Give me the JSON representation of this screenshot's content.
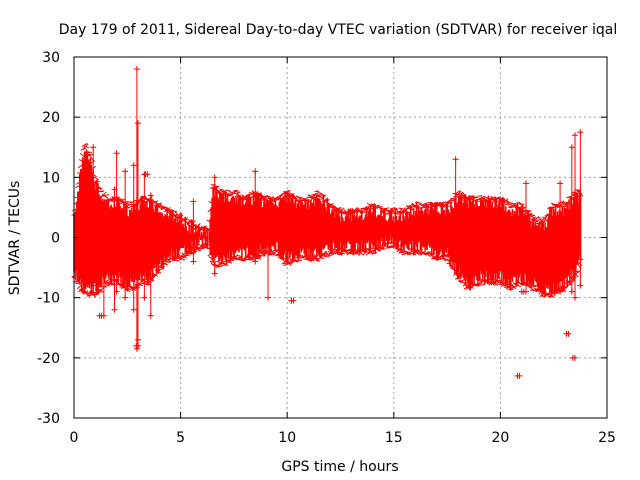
{
  "chart_data": {
    "type": "scatter",
    "title": "Day 179 of 2011, Sidereal Day-to-day VTEC variation (SDTVAR) for receiver iqal",
    "xlabel": "GPS time / hours",
    "ylabel": "SDTVAR / TECUs",
    "xlim": [
      0,
      25
    ],
    "ylim": [
      -30,
      30
    ],
    "xticks": [
      0,
      5,
      10,
      15,
      20,
      25
    ],
    "yticks": [
      -30,
      -20,
      -10,
      0,
      10,
      20,
      30
    ],
    "grid": true,
    "series": [
      {
        "name": "SDTVAR",
        "color": "#ff0000",
        "marker": "+",
        "envelope": {
          "x": [
            0.0,
            0.3,
            0.5,
            0.8,
            1.0,
            1.3,
            1.6,
            2.0,
            2.5,
            2.8,
            3.2,
            3.5,
            4.0,
            4.5,
            5.0,
            5.5,
            6.0,
            6.3,
            6.5,
            7.0,
            7.5,
            8.0,
            8.5,
            9.0,
            9.5,
            10.0,
            10.5,
            11.0,
            11.5,
            12.0,
            12.5,
            13.0,
            13.5,
            14.0,
            14.5,
            15.0,
            15.5,
            16.0,
            16.5,
            17.0,
            17.5,
            18.0,
            18.5,
            19.0,
            19.5,
            20.0,
            20.5,
            21.0,
            21.5,
            22.0,
            22.5,
            23.0,
            23.5,
            23.8
          ],
          "upper": [
            4,
            12,
            16,
            14,
            10,
            8,
            7,
            7,
            6,
            6,
            7,
            7,
            6,
            5,
            4,
            3,
            2,
            2,
            9,
            8,
            8,
            7,
            8,
            7,
            7,
            8,
            7,
            7,
            8,
            6,
            5,
            5,
            5,
            6,
            5,
            5,
            5,
            6,
            6,
            6,
            6,
            8,
            7,
            7,
            7,
            7,
            6,
            6,
            4,
            3,
            6,
            6,
            8,
            8
          ],
          "lower": [
            -7,
            -9,
            -10,
            -10,
            -10,
            -9,
            -8,
            -8,
            -9,
            -9,
            -8,
            -8,
            -6,
            -4,
            -4,
            -3,
            -2,
            -2,
            -5,
            -5,
            -4,
            -4,
            -4,
            -3,
            -3,
            -5,
            -4,
            -4,
            -4,
            -3,
            -3,
            -3,
            -3,
            -3,
            -2,
            -2,
            -3,
            -3,
            -3,
            -4,
            -4,
            -7,
            -9,
            -8,
            -8,
            -8,
            -9,
            -8,
            -9,
            -10,
            -10,
            -9,
            -7,
            -4
          ]
        },
        "spikes": [
          {
            "x": 0.9,
            "low": -8,
            "high": 15
          },
          {
            "x": 1.4,
            "low": -13,
            "high": 5
          },
          {
            "x": 1.9,
            "low": -12,
            "high": 8
          },
          {
            "x": 2.0,
            "low": -9,
            "high": 14
          },
          {
            "x": 2.4,
            "low": -10,
            "high": 11
          },
          {
            "x": 2.8,
            "low": -12,
            "high": 12
          },
          {
            "x": 2.95,
            "low": -18.5,
            "high": 28
          },
          {
            "x": 3.0,
            "low": -17,
            "high": 19
          },
          {
            "x": 3.3,
            "low": -10,
            "high": 10.5
          },
          {
            "x": 3.6,
            "low": -13,
            "high": 7
          },
          {
            "x": 5.6,
            "low": -4,
            "high": 6
          },
          {
            "x": 6.6,
            "low": -6,
            "high": 10
          },
          {
            "x": 8.5,
            "low": -4,
            "high": 11
          },
          {
            "x": 9.1,
            "low": -10,
            "high": 4
          },
          {
            "x": 17.9,
            "low": -3,
            "high": 13
          },
          {
            "x": 21.2,
            "low": -9,
            "high": 9
          },
          {
            "x": 22.8,
            "low": -9,
            "high": 9
          },
          {
            "x": 23.35,
            "low": -9,
            "high": 15
          },
          {
            "x": 23.5,
            "low": -10,
            "high": 17
          },
          {
            "x": 23.75,
            "low": -8,
            "high": 17.5
          }
        ],
        "isolated_points": [
          {
            "x": 1.2,
            "y": -13
          },
          {
            "x": 2.92,
            "y": -18
          },
          {
            "x": 3.35,
            "y": 10.5
          },
          {
            "x": 10.2,
            "y": -10.5
          },
          {
            "x": 20.8,
            "y": -23
          },
          {
            "x": 21.0,
            "y": -9
          },
          {
            "x": 23.1,
            "y": -16
          },
          {
            "x": 23.4,
            "y": -20
          }
        ]
      }
    ]
  }
}
